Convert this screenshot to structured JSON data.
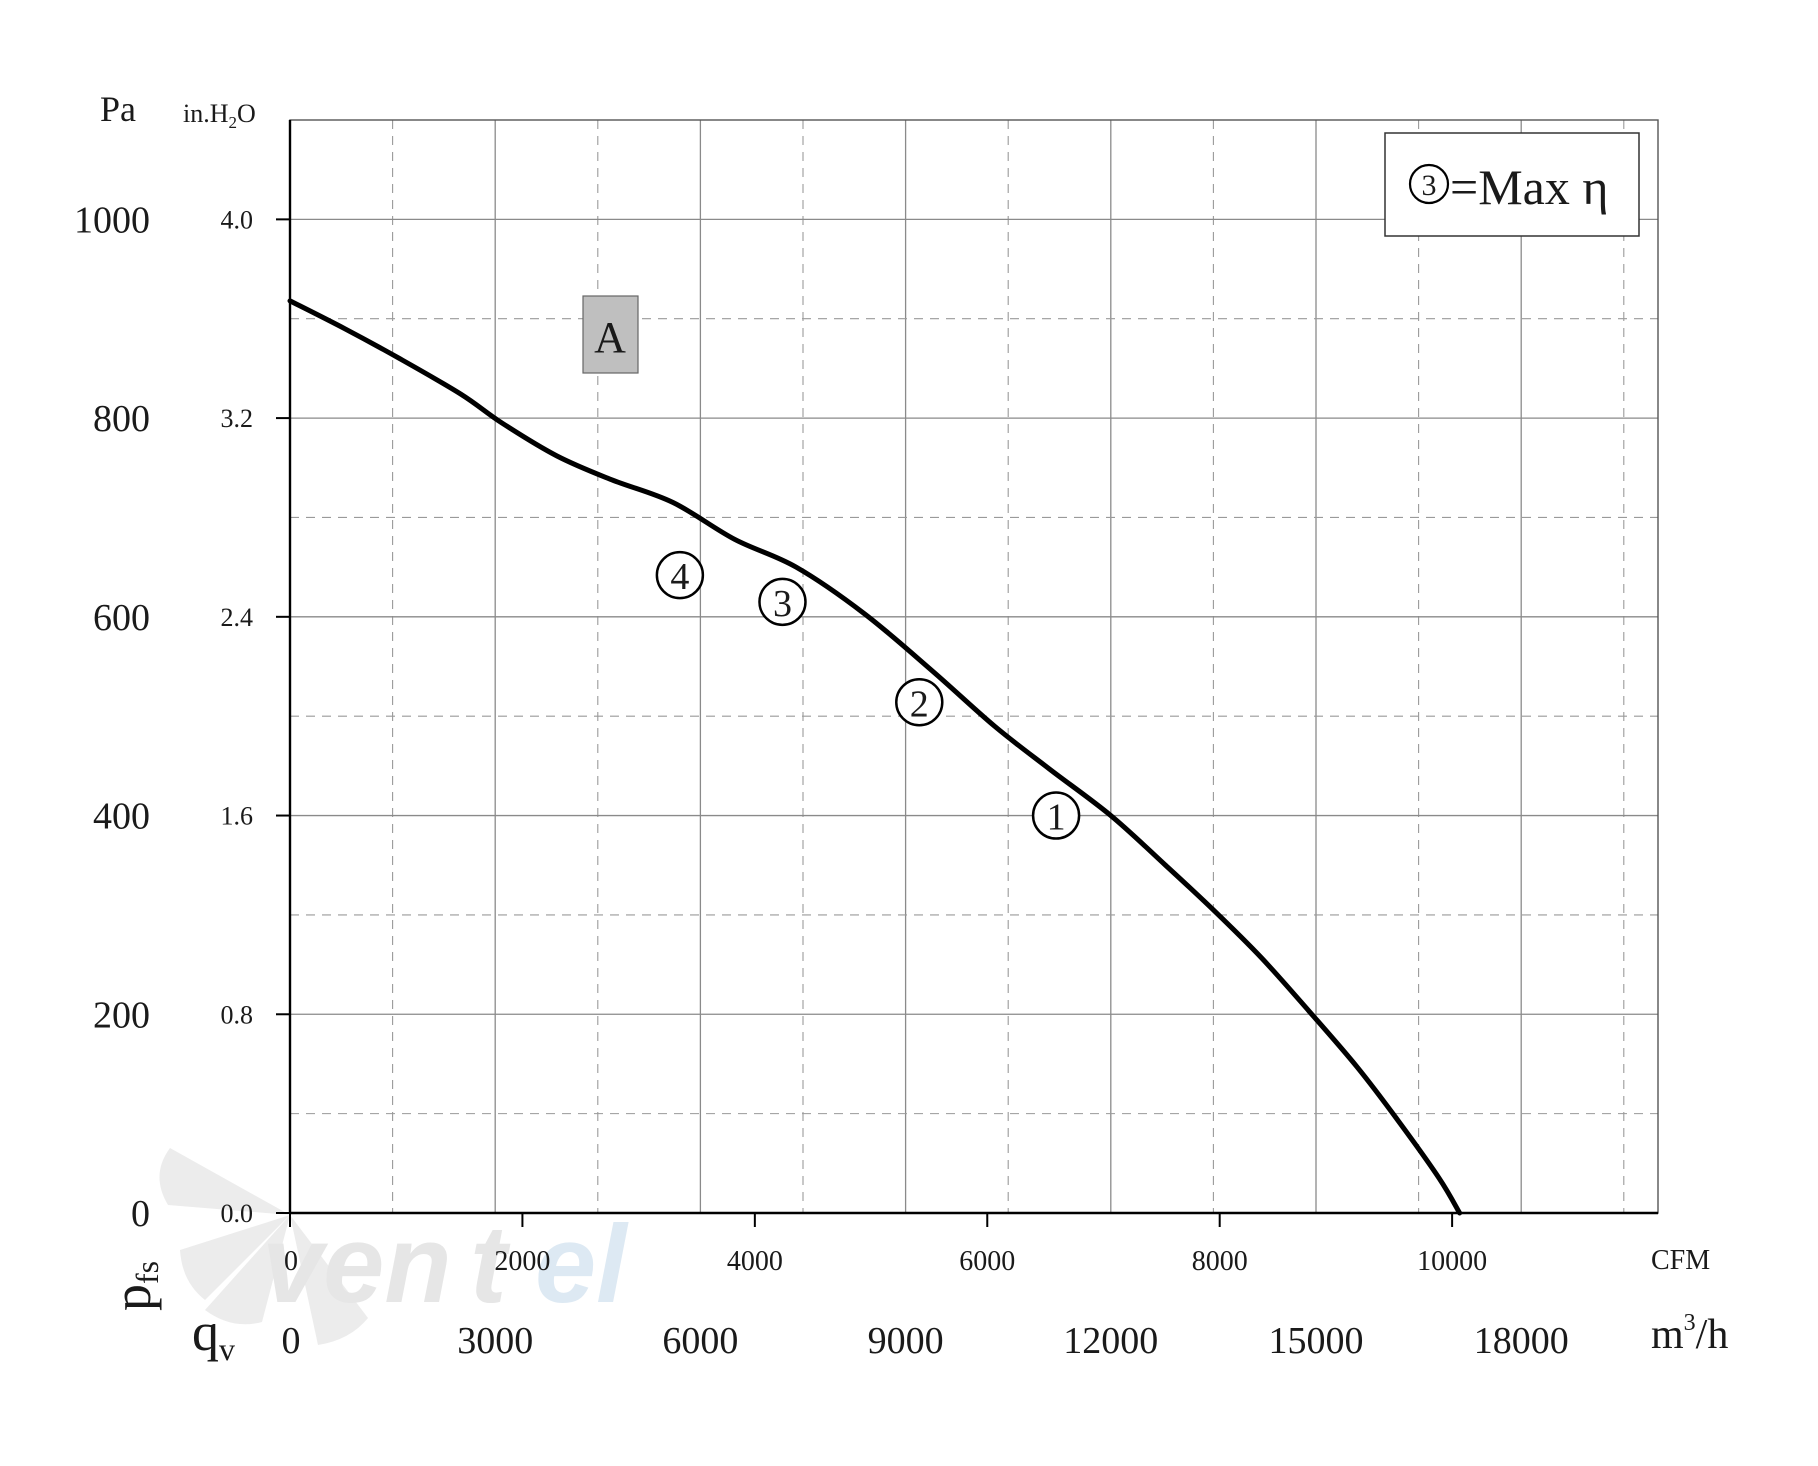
{
  "chart_data": {
    "type": "line",
    "title": "",
    "y_axes": {
      "primary": {
        "unit": "Pa",
        "ticks": [
          "0",
          "200",
          "400",
          "600",
          "800",
          "1000"
        ],
        "range": [
          0,
          1100
        ]
      },
      "secondary": {
        "unit": "in.H",
        "unit_sub": "2",
        "unit_tail": "O",
        "ticks": [
          "0.0",
          "0.8",
          "1.6",
          "2.4",
          "3.2",
          "4.0"
        ]
      },
      "symbol": "p",
      "symbol_sub": "fs"
    },
    "x_axes": {
      "primary": {
        "unit": "m",
        "unit_sup": "3",
        "unit_tail": "/h",
        "ticks": [
          "0",
          "3000",
          "6000",
          "9000",
          "12000",
          "15000",
          "18000"
        ],
        "range": [
          0,
          20000
        ]
      },
      "secondary": {
        "unit": "CFM",
        "ticks": [
          "0",
          "2000",
          "4000",
          "6000",
          "8000",
          "10000"
        ]
      },
      "symbol": "q",
      "symbol_sub": "v"
    },
    "grid": true,
    "series": [
      {
        "x": [
          0,
          800,
          1600,
          2500,
          3100,
          3900,
          4700,
          5600,
          6500,
          7400,
          8400,
          9400,
          10300,
          11100,
          12000,
          12800,
          13500,
          14200,
          14900,
          15600,
          16200,
          16800,
          17100
        ],
        "y": [
          918,
          890,
          860,
          824,
          795,
          762,
          738,
          715,
          678,
          650,
          603,
          545,
          490,
          447,
          400,
          350,
          305,
          257,
          203,
          147,
          93,
          35,
          0
        ]
      }
    ],
    "annotations": {
      "points": [
        {
          "label": "4",
          "x": 5700,
          "y": 642
        },
        {
          "label": "3",
          "x": 7200,
          "y": 615
        },
        {
          "label": "2",
          "x": 9200,
          "y": 514
        },
        {
          "label": "1",
          "x": 11200,
          "y": 400
        }
      ],
      "zone_label": "A",
      "legend_marker": "3",
      "legend_text": "=Max η"
    }
  },
  "watermark": "ventel",
  "colors": {
    "curve": "#000000",
    "zone_box": "#bfbfbf",
    "watermark": "#e6e6e6",
    "watermark_accent": "#dde9f3"
  }
}
